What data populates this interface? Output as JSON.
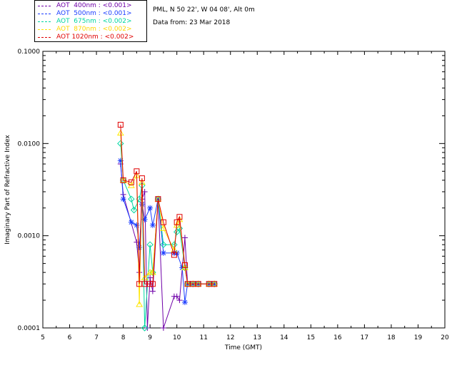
{
  "legend": [
    {
      "label": "AOT  400nm : <0.001>",
      "color": "#6f00a8"
    },
    {
      "label": "AOT  500nm : <0.001>",
      "color": "#1a3cff"
    },
    {
      "label": "AOT  675nm : <0.002>",
      "color": "#00d6a0"
    },
    {
      "label": "AOT  870nm : <0.002>",
      "color": "#ffe600"
    },
    {
      "label": "AOT 1020nm : <0.002>",
      "color": "#e00000"
    }
  ],
  "info": {
    "site": "PML, N 50 22', W 04 08', Alt 0m",
    "date": "Data from: 23 Mar 2018"
  },
  "chart_data": {
    "type": "line",
    "xlabel": "Time (GMT)",
    "ylabel": "Imaginary Part of Refractive Index",
    "xlim": [
      5,
      20
    ],
    "ylim": [
      0.0001,
      0.1
    ],
    "yscale": "log",
    "xticks": [
      "5",
      "6",
      "7",
      "8",
      "9",
      "10",
      "11",
      "12",
      "13",
      "14",
      "15",
      "16",
      "17",
      "18",
      "19",
      "20"
    ],
    "yticks": [
      "0.0001",
      "0.0010",
      "0.0100",
      "0.1000"
    ],
    "series": [
      {
        "name": "AOT  400nm : <0.001>",
        "color": "#6f00a8",
        "marker": "plus",
        "points": [
          [
            7.9,
            0.006
          ],
          [
            8.0,
            0.0028
          ],
          [
            8.5,
            0.00085
          ],
          [
            8.6,
            0.0004
          ],
          [
            8.7,
            0.0025
          ],
          [
            8.8,
            0.003
          ],
          [
            8.9,
            0.0001
          ],
          [
            9.0,
            0.00035
          ],
          [
            9.1,
            0.00025
          ],
          [
            9.3,
            0.0025
          ],
          [
            9.5,
            0.0001
          ],
          [
            9.9,
            0.00022
          ],
          [
            10.0,
            0.00022
          ],
          [
            10.1,
            0.0002
          ],
          [
            10.3,
            0.00095
          ],
          [
            10.4,
            0.0003
          ],
          [
            10.5,
            0.0003
          ],
          [
            10.6,
            0.0003
          ],
          [
            10.8,
            0.0003
          ],
          [
            11.2,
            0.0003
          ],
          [
            11.4,
            0.0003
          ]
        ]
      },
      {
        "name": "AOT  500nm : <0.001>",
        "color": "#1a3cff",
        "marker": "asterisk",
        "points": [
          [
            7.9,
            0.0065
          ],
          [
            8.0,
            0.0025
          ],
          [
            8.3,
            0.0014
          ],
          [
            8.5,
            0.0013
          ],
          [
            8.6,
            0.00075
          ],
          [
            8.7,
            0.0022
          ],
          [
            8.8,
            0.0015
          ],
          [
            9.0,
            0.002
          ],
          [
            9.1,
            0.0013
          ],
          [
            9.3,
            0.0025
          ],
          [
            9.5,
            0.00065
          ],
          [
            9.9,
            0.00065
          ],
          [
            10.0,
            0.00065
          ],
          [
            10.2,
            0.00045
          ],
          [
            10.3,
            0.00019
          ],
          [
            10.4,
            0.0003
          ],
          [
            10.6,
            0.0003
          ],
          [
            10.8,
            0.0003
          ],
          [
            11.2,
            0.0003
          ],
          [
            11.4,
            0.0003
          ]
        ]
      },
      {
        "name": "AOT  675nm : <0.002>",
        "color": "#00d6a0",
        "marker": "diamond",
        "points": [
          [
            7.9,
            0.01
          ],
          [
            8.0,
            0.004
          ],
          [
            8.3,
            0.0025
          ],
          [
            8.4,
            0.0019
          ],
          [
            8.6,
            0.0025
          ],
          [
            8.7,
            0.0035
          ],
          [
            8.8,
            0.0001
          ],
          [
            9.0,
            0.0008
          ],
          [
            9.1,
            0.0004
          ],
          [
            9.3,
            0.0025
          ],
          [
            9.5,
            0.0008
          ],
          [
            9.9,
            0.0008
          ],
          [
            10.0,
            0.0011
          ],
          [
            10.1,
            0.0012
          ],
          [
            10.3,
            0.00045
          ],
          [
            10.4,
            0.0003
          ],
          [
            10.6,
            0.0003
          ],
          [
            10.8,
            0.0003
          ],
          [
            11.2,
            0.0003
          ],
          [
            11.4,
            0.0003
          ]
        ]
      },
      {
        "name": "AOT  870nm : <0.002>",
        "color": "#ffe600",
        "marker": "triangle",
        "points": [
          [
            7.9,
            0.013
          ],
          [
            8.0,
            0.004
          ],
          [
            8.3,
            0.0035
          ],
          [
            8.5,
            0.0045
          ],
          [
            8.6,
            0.00018
          ],
          [
            8.7,
            0.0038
          ],
          [
            8.8,
            0.00035
          ],
          [
            9.0,
            0.0004
          ],
          [
            9.1,
            0.0004
          ],
          [
            9.3,
            0.0025
          ],
          [
            9.5,
            0.0012
          ],
          [
            9.9,
            0.0007
          ],
          [
            10.0,
            0.0013
          ],
          [
            10.1,
            0.0015
          ],
          [
            10.3,
            0.00045
          ],
          [
            10.4,
            0.0003
          ],
          [
            10.6,
            0.0003
          ],
          [
            10.8,
            0.0003
          ],
          [
            11.2,
            0.0003
          ],
          [
            11.4,
            0.0003
          ]
        ]
      },
      {
        "name": "AOT 1020nm : <0.002>",
        "color": "#e00000",
        "marker": "square",
        "points": [
          [
            7.9,
            0.016
          ],
          [
            8.0,
            0.004
          ],
          [
            8.3,
            0.0038
          ],
          [
            8.5,
            0.005
          ],
          [
            8.6,
            0.0003
          ],
          [
            8.7,
            0.0042
          ],
          [
            8.8,
            0.0003
          ],
          [
            9.0,
            0.0003
          ],
          [
            9.1,
            0.0003
          ],
          [
            9.3,
            0.0025
          ],
          [
            9.5,
            0.0014
          ],
          [
            9.9,
            0.00062
          ],
          [
            10.0,
            0.0014
          ],
          [
            10.1,
            0.0016
          ],
          [
            10.3,
            0.00048
          ],
          [
            10.4,
            0.0003
          ],
          [
            10.6,
            0.0003
          ],
          [
            10.8,
            0.0003
          ],
          [
            11.2,
            0.0003
          ],
          [
            11.4,
            0.0003
          ]
        ]
      }
    ]
  }
}
